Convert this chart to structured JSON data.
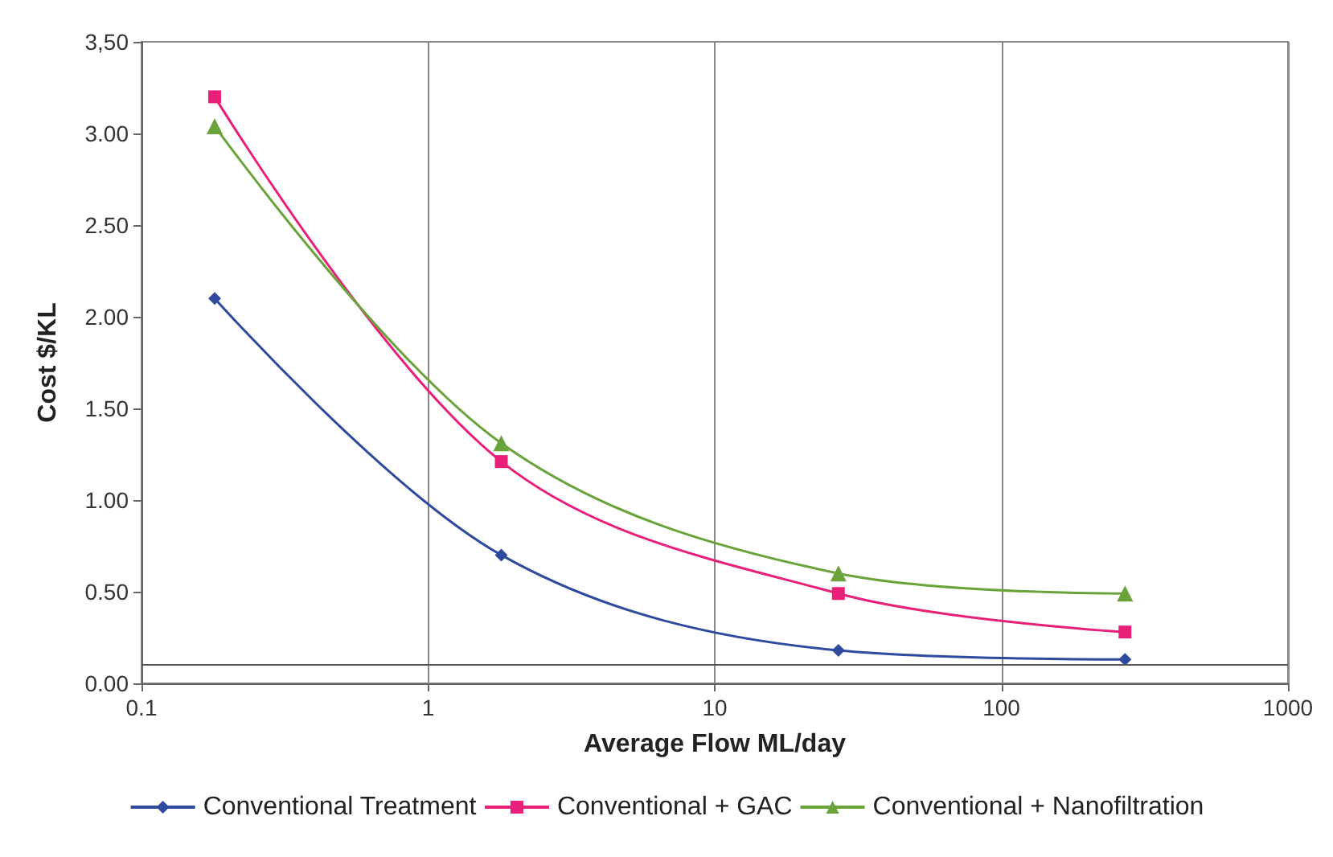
{
  "chart_data": {
    "type": "line",
    "xlabel": "Average Flow ML/day",
    "ylabel": "Cost $/KL",
    "log": "x",
    "xlim": [
      0.1,
      1000
    ],
    "xticks": [
      0.1,
      1,
      10,
      100,
      1000
    ],
    "ylim": [
      0,
      3.5
    ],
    "yticks": [
      {
        "value": 0,
        "label": "0.00"
      },
      {
        "value": 0.5,
        "label": "0.50"
      },
      {
        "value": 1,
        "label": "1.00"
      },
      {
        "value": 1.5,
        "label": "1.50"
      },
      {
        "value": 2,
        "label": "2.00"
      },
      {
        "value": 2.5,
        "label": "2.50"
      },
      {
        "value": 3,
        "label": "3.00"
      },
      {
        "value": 3.5,
        "label": "3,50"
      }
    ],
    "x": [
      0.18,
      1.8,
      27,
      270
    ],
    "series": [
      {
        "name": "Conventional Treatment",
        "color": "#2e4a9e",
        "marker": "diamond",
        "values": [
          2.1,
          0.7,
          0.18,
          0.13
        ]
      },
      {
        "name": "Conventional + GAC",
        "color": "#e8207a",
        "marker": "square",
        "values": [
          3.2,
          1.21,
          0.49,
          0.28
        ]
      },
      {
        "name": "Conventional + Nanofiltration",
        "color": "#6aa33a",
        "marker": "triangle",
        "values": [
          3.04,
          1.31,
          0.6,
          0.49
        ]
      }
    ],
    "ref_lines": [
      {
        "axis": "y",
        "value": 0.1,
        "color": "#555555"
      }
    ],
    "grid": "x",
    "legend": "bottom"
  }
}
